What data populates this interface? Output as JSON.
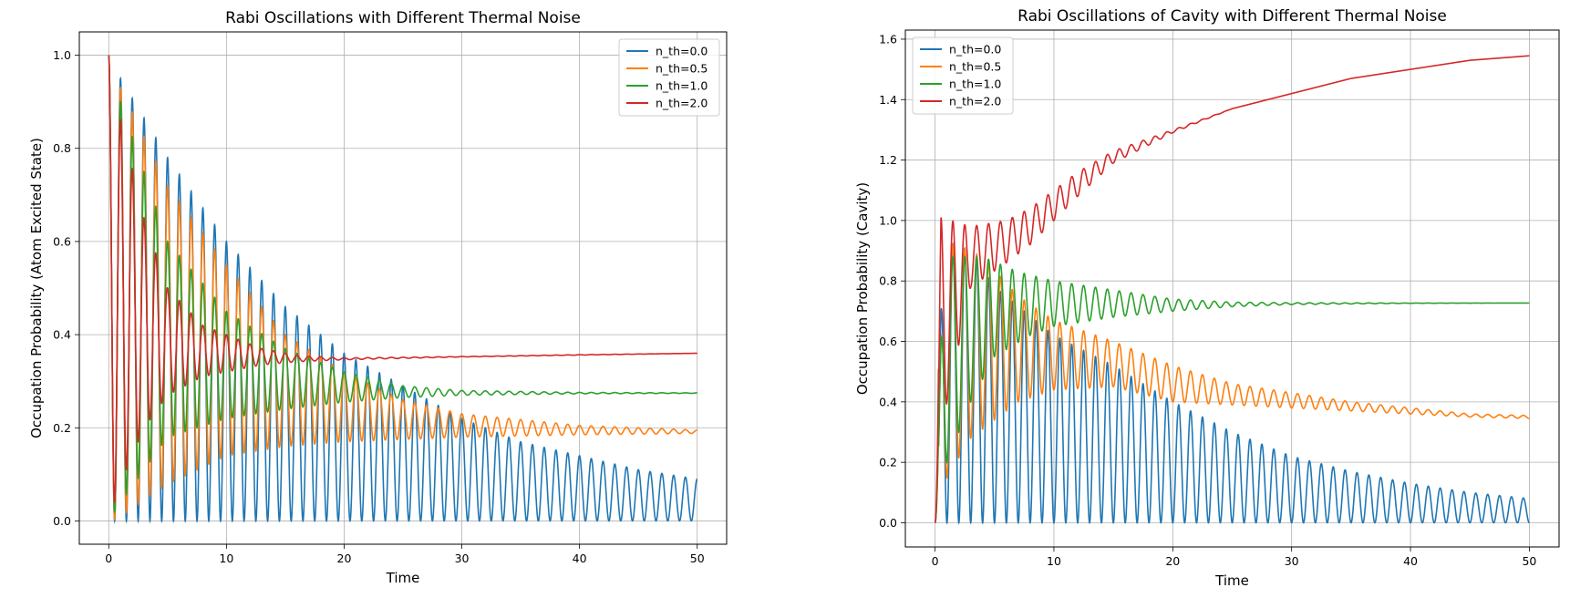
{
  "chart_data": [
    {
      "type": "line",
      "title": "Rabi Oscillations with Different Thermal Noise",
      "xlabel": "Time",
      "ylabel": "Occupation Probability (Atom Excited State)",
      "xlim": [
        -2.5,
        52.5
      ],
      "ylim": [
        -0.05,
        1.05
      ],
      "xticks": [
        "0",
        "10",
        "20",
        "30",
        "40",
        "50"
      ],
      "yticks": [
        "0.0",
        "0.2",
        "0.4",
        "0.6",
        "0.8",
        "1.0"
      ],
      "grid": true,
      "legend_position": "top-right",
      "series": [
        {
          "name": "n_th=0.0",
          "color": "#1f77b4",
          "envelope_upper": [
            [
              0,
              1.0
            ],
            [
              1,
              0.95
            ],
            [
              5,
              0.78
            ],
            [
              10,
              0.6
            ],
            [
              15,
              0.46
            ],
            [
              20,
              0.36
            ],
            [
              25,
              0.29
            ],
            [
              30,
              0.22
            ],
            [
              35,
              0.17
            ],
            [
              40,
              0.14
            ],
            [
              45,
              0.11
            ],
            [
              50,
              0.09
            ]
          ],
          "envelope_lower": [
            [
              0,
              0.0
            ],
            [
              1,
              0.0
            ],
            [
              50,
              0.0
            ]
          ],
          "periods_from_t": [
            [
              0,
              1.0
            ],
            [
              50,
              1.0
            ]
          ]
        },
        {
          "name": "n_th=0.5",
          "color": "#ff7f0e",
          "envelope_upper": [
            [
              0,
              1.0
            ],
            [
              1,
              0.93
            ],
            [
              5,
              0.72
            ],
            [
              10,
              0.55
            ],
            [
              15,
              0.4
            ],
            [
              20,
              0.32
            ],
            [
              25,
              0.26
            ],
            [
              30,
              0.23
            ],
            [
              40,
              0.205
            ],
            [
              50,
              0.195
            ]
          ],
          "envelope_lower": [
            [
              0,
              0.0
            ],
            [
              1,
              0.01
            ],
            [
              5,
              0.08
            ],
            [
              10,
              0.14
            ],
            [
              15,
              0.16
            ],
            [
              20,
              0.17
            ],
            [
              25,
              0.175
            ],
            [
              30,
              0.18
            ],
            [
              40,
              0.185
            ],
            [
              50,
              0.188
            ]
          ],
          "periods_from_t": [
            [
              0,
              1.0
            ],
            [
              50,
              1.0
            ]
          ]
        },
        {
          "name": "n_th=1.0",
          "color": "#2ca02c",
          "envelope_upper": [
            [
              0,
              1.0
            ],
            [
              1,
              0.9
            ],
            [
              5,
              0.6
            ],
            [
              10,
              0.45
            ],
            [
              15,
              0.37
            ],
            [
              20,
              0.32
            ],
            [
              25,
              0.29
            ],
            [
              30,
              0.28
            ],
            [
              40,
              0.276
            ],
            [
              50,
              0.275
            ]
          ],
          "envelope_lower": [
            [
              0,
              0.0
            ],
            [
              1,
              0.04
            ],
            [
              5,
              0.18
            ],
            [
              10,
              0.22
            ],
            [
              15,
              0.24
            ],
            [
              20,
              0.255
            ],
            [
              25,
              0.265
            ],
            [
              30,
              0.27
            ],
            [
              40,
              0.273
            ],
            [
              50,
              0.274
            ]
          ],
          "periods_from_t": [
            [
              0,
              1.0
            ],
            [
              50,
              1.0
            ]
          ]
        },
        {
          "name": "n_th=2.0",
          "color": "#d62728",
          "envelope_upper": [
            [
              0,
              1.0
            ],
            [
              1,
              0.86
            ],
            [
              3,
              0.65
            ],
            [
              5,
              0.5
            ],
            [
              8,
              0.42
            ],
            [
              10,
              0.4
            ],
            [
              13,
              0.37
            ],
            [
              16,
              0.355
            ],
            [
              20,
              0.35
            ],
            [
              30,
              0.353
            ],
            [
              40,
              0.357
            ],
            [
              50,
              0.36
            ]
          ],
          "envelope_lower": [
            [
              0,
              0.0
            ],
            [
              1,
              0.08
            ],
            [
              3,
              0.2
            ],
            [
              5,
              0.27
            ],
            [
              8,
              0.31
            ],
            [
              10,
              0.32
            ],
            [
              13,
              0.335
            ],
            [
              16,
              0.342
            ],
            [
              20,
              0.346
            ],
            [
              30,
              0.352
            ],
            [
              40,
              0.356
            ],
            [
              50,
              0.36
            ]
          ],
          "periods_from_t": [
            [
              0,
              1.0
            ],
            [
              50,
              1.0
            ]
          ]
        }
      ]
    },
    {
      "type": "line",
      "title": "Rabi Oscillations of Cavity with Different Thermal Noise",
      "xlabel": "Time",
      "ylabel": "Occupation Probability (Cavity)",
      "xlim": [
        -2.5,
        52.5
      ],
      "ylim": [
        -0.08,
        1.63
      ],
      "xticks": [
        "0",
        "10",
        "20",
        "30",
        "40",
        "50"
      ],
      "yticks": [
        "0.0",
        "0.2",
        "0.4",
        "0.6",
        "0.8",
        "1.0",
        "1.2",
        "1.4",
        "1.6"
      ],
      "grid": true,
      "legend_position": "top-left",
      "series": [
        {
          "name": "n_th=0.0",
          "color": "#1f77b4",
          "envelope_upper": [
            [
              0,
              0.0
            ],
            [
              0.5,
              0.7
            ],
            [
              1,
              0.93
            ],
            [
              3,
              0.9
            ],
            [
              5,
              0.78
            ],
            [
              10,
              0.62
            ],
            [
              15,
              0.52
            ],
            [
              20,
              0.4
            ],
            [
              25,
              0.3
            ],
            [
              30,
              0.22
            ],
            [
              35,
              0.17
            ],
            [
              40,
              0.13
            ],
            [
              45,
              0.1
            ],
            [
              50,
              0.08
            ]
          ],
          "envelope_lower": [
            [
              0,
              0.0
            ],
            [
              50,
              0.0
            ]
          ],
          "periods_from_t": [
            [
              0,
              1.0
            ],
            [
              50,
              1.0
            ]
          ]
        },
        {
          "name": "n_th=0.5",
          "color": "#ff7f0e",
          "envelope_upper": [
            [
              0,
              0.0
            ],
            [
              0.5,
              0.6
            ],
            [
              1,
              0.93
            ],
            [
              4,
              0.88
            ],
            [
              7,
              0.75
            ],
            [
              10,
              0.67
            ],
            [
              15,
              0.6
            ],
            [
              20,
              0.52
            ],
            [
              25,
              0.46
            ],
            [
              30,
              0.43
            ],
            [
              35,
              0.4
            ],
            [
              40,
              0.38
            ],
            [
              45,
              0.36
            ],
            [
              50,
              0.355
            ]
          ],
          "envelope_lower": [
            [
              0,
              0.0
            ],
            [
              1,
              0.15
            ],
            [
              3,
              0.28
            ],
            [
              7,
              0.4
            ],
            [
              10,
              0.44
            ],
            [
              15,
              0.45
            ],
            [
              20,
              0.4
            ],
            [
              25,
              0.39
            ],
            [
              30,
              0.38
            ],
            [
              35,
              0.37
            ],
            [
              40,
              0.36
            ],
            [
              45,
              0.35
            ],
            [
              50,
              0.345
            ]
          ],
          "periods_from_t": [
            [
              0,
              1.0
            ],
            [
              50,
              1.0
            ]
          ]
        },
        {
          "name": "n_th=1.0",
          "color": "#2ca02c",
          "envelope_upper": [
            [
              0,
              0.0
            ],
            [
              0.5,
              0.6
            ],
            [
              1,
              0.88
            ],
            [
              4,
              0.88
            ],
            [
              7,
              0.83
            ],
            [
              10,
              0.8
            ],
            [
              15,
              0.77
            ],
            [
              20,
              0.74
            ],
            [
              25,
              0.73
            ],
            [
              30,
              0.728
            ],
            [
              40,
              0.727
            ],
            [
              50,
              0.727
            ]
          ],
          "envelope_lower": [
            [
              0,
              0.0
            ],
            [
              1,
              0.2
            ],
            [
              3,
              0.4
            ],
            [
              5,
              0.55
            ],
            [
              8,
              0.62
            ],
            [
              10,
              0.65
            ],
            [
              15,
              0.68
            ],
            [
              20,
              0.7
            ],
            [
              25,
              0.715
            ],
            [
              30,
              0.722
            ],
            [
              40,
              0.726
            ],
            [
              50,
              0.727
            ]
          ],
          "periods_from_t": [
            [
              0,
              1.0
            ],
            [
              50,
              1.0
            ]
          ]
        },
        {
          "name": "n_th=2.0",
          "color": "#d62728",
          "envelope_upper": [
            [
              0,
              0.0
            ],
            [
              0.5,
              1.01
            ],
            [
              3,
              0.98
            ],
            [
              6,
              1.0
            ],
            [
              8,
              1.04
            ],
            [
              10,
              1.1
            ],
            [
              12,
              1.16
            ],
            [
              15,
              1.23
            ],
            [
              20,
              1.3
            ],
            [
              25,
              1.37
            ],
            [
              30,
              1.42
            ],
            [
              35,
              1.47
            ],
            [
              40,
              1.5
            ],
            [
              45,
              1.53
            ],
            [
              50,
              1.545
            ]
          ],
          "envelope_lower": [
            [
              0,
              0.0
            ],
            [
              1,
              0.4
            ],
            [
              3,
              0.78
            ],
            [
              6,
              0.86
            ],
            [
              8,
              0.92
            ],
            [
              10,
              1.0
            ],
            [
              12,
              1.08
            ],
            [
              15,
              1.19
            ],
            [
              20,
              1.29
            ],
            [
              25,
              1.37
            ],
            [
              30,
              1.42
            ],
            [
              35,
              1.47
            ],
            [
              40,
              1.5
            ],
            [
              45,
              1.53
            ],
            [
              50,
              1.545
            ]
          ],
          "periods_from_t": [
            [
              0,
              1.0
            ],
            [
              50,
              1.0
            ]
          ]
        }
      ]
    }
  ]
}
